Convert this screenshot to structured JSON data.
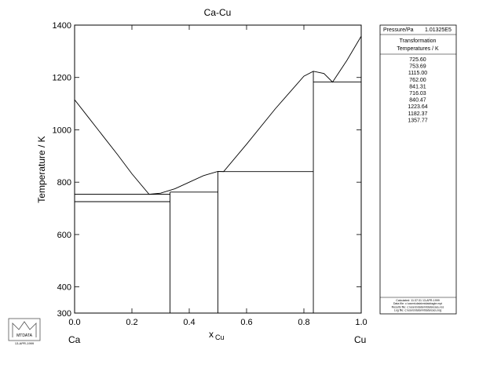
{
  "chart_data": {
    "type": "line",
    "title": "Ca-Cu",
    "ylabel": "Temperature / K",
    "xlabel": {
      "main": "x",
      "sub": "Cu"
    },
    "left_element": "Ca",
    "right_element": "Cu",
    "xlim": [
      0,
      1
    ],
    "ylim": [
      300,
      1400
    ],
    "xticks": [
      {
        "value": 0,
        "label": "0.0"
      },
      {
        "value": 0.2,
        "label": "0.2"
      },
      {
        "value": 0.4,
        "label": "0.4"
      },
      {
        "value": 0.6,
        "label": "0.6"
      },
      {
        "value": 0.8,
        "label": "0.8"
      },
      {
        "value": 1,
        "label": "1.0"
      }
    ],
    "yticks": [
      300,
      400,
      600,
      800,
      1000,
      1200,
      1400
    ],
    "color": "#000000",
    "series": [
      {
        "x": [
          0,
          0.05,
          0.1,
          0.15,
          0.2,
          0.26,
          0.3,
          0.35,
          0.4,
          0.45,
          0.5,
          0.52,
          0.6,
          0.7,
          0.8,
          0.833,
          0.87,
          0.9,
          0.95,
          1.0
        ],
        "values": [
          1115,
          1045,
          975,
          905,
          832,
          753.69,
          758,
          775,
          800,
          825,
          841.31,
          840.47,
          945,
          1080,
          1205,
          1223.64,
          1215,
          1182.37,
          1265,
          1357.77
        ]
      },
      {
        "x": [
          0,
          0.333,
          null,
          0,
          0.333,
          null,
          0.333,
          0.333,
          null,
          0.333,
          0.5,
          null,
          0.5,
          0.5,
          null,
          0.5,
          0.833,
          null,
          0.833,
          0.833,
          null,
          0.833,
          1.0
        ],
        "values": [
          753.69,
          753.69,
          null,
          725.6,
          725.6,
          null,
          300,
          762.0,
          null,
          762.0,
          762.0,
          null,
          300,
          840.47,
          null,
          840.47,
          840.47,
          null,
          300,
          1223.64,
          null,
          1182.37,
          1182.37
        ]
      }
    ]
  },
  "panel": {
    "pressure_label": "Pressure/Pa",
    "pressure_value": "1.01325E5",
    "heading": [
      "Transformation",
      "Temperatures / K"
    ],
    "temperatures": [
      "725.60",
      "753.69",
      "1115.00",
      "762.00",
      "841.31",
      "716.03",
      "840.47",
      "1223.64",
      "1182.37",
      "1357.77"
    ],
    "footer": [
      "Calculated: 11:37:31 13-APR-1999",
      "Data file: c:\\users\\data\\mtdata\\sgte.mpi",
      "Results file: c:\\users\\data\\mtdata\\cacu.res",
      "Log file: c:\\users\\data\\mtdata\\cacu.log"
    ]
  },
  "logo": {
    "name": "MTDATA",
    "date": "13-APR-1999"
  }
}
